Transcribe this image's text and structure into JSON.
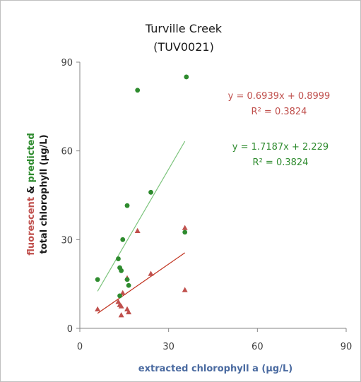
{
  "chart_data": {
    "type": "scatter",
    "title": "Turville Creek",
    "subtitle": "(TUV0021)",
    "xlabel": "extracted chlorophyll a (µg/L)",
    "ylabel_line1_red": "fluorescent",
    "ylabel_line1_mid": " & ",
    "ylabel_line1_green": "predicted",
    "ylabel_line2": "total chlorophyll (µg/L)",
    "xlim": [
      0,
      90
    ],
    "ylim": [
      0,
      90
    ],
    "xticks": [
      "0",
      "30",
      "60",
      "90"
    ],
    "yticks": [
      "0",
      "30",
      "60",
      "90"
    ],
    "grid": false,
    "colors": {
      "red": "#c0504d",
      "green": "#2e8b2e",
      "red_line": "#c0301c",
      "green_line": "#7cc47c"
    },
    "series": [
      {
        "color": "red",
        "marker": "triangle",
        "x": [
          6,
          13,
          13.5,
          14,
          14,
          14.5,
          16,
          16,
          16.5,
          19.5,
          24,
          35.5,
          35.5
        ],
        "y": [
          6.5,
          9,
          8,
          4.5,
          7.5,
          12,
          17,
          6.5,
          5.5,
          33,
          18.5,
          34,
          13
        ],
        "fit": {
          "slope": 0.6939,
          "intercept": 0.8999,
          "x_range": [
            6,
            35.5
          ]
        },
        "equation": "y = 0.6939x + 0.8999",
        "r2": "R² = 0.3824"
      },
      {
        "color": "green",
        "marker": "circle",
        "x": [
          6,
          13,
          13.5,
          13.5,
          14,
          14.5,
          16,
          16,
          16.5,
          19.5,
          24,
          35.5,
          36
        ],
        "y": [
          16.5,
          23.5,
          20.5,
          11,
          19.5,
          30,
          41.5,
          16.5,
          14.5,
          80.5,
          46,
          32.5,
          85
        ],
        "fit": {
          "slope": 1.7187,
          "intercept": 2.229,
          "x_range": [
            6,
            35.5
          ]
        },
        "equation": "y = 1.7187x + 2.229",
        "r2": "R² = 0.3824"
      }
    ]
  }
}
